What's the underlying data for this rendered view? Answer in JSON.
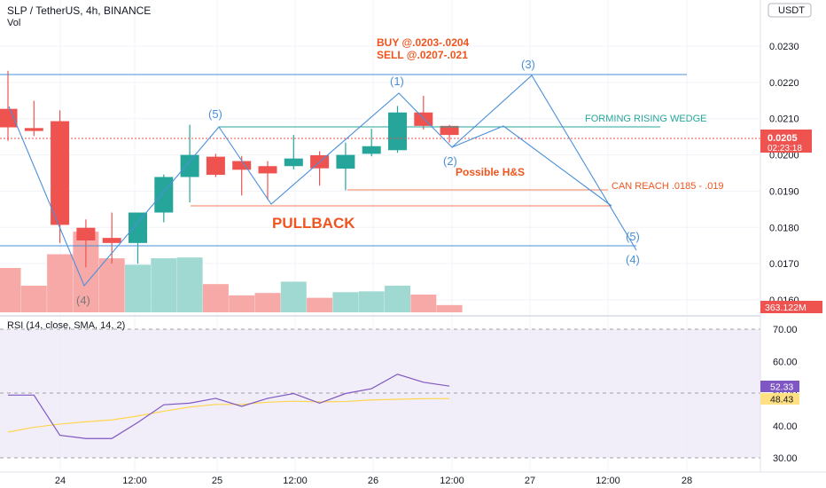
{
  "header": {
    "symbol_line": "SLP / TetherUS, 4h, BINANCE",
    "vol_label": "Vol",
    "currency_badge": "USDT"
  },
  "price_axis": {
    "ticks": [
      "0.0230",
      "0.0220",
      "0.0210",
      "0.0200",
      "0.0190",
      "0.0180",
      "0.0170",
      "0.0160"
    ],
    "last_price": "0.0205",
    "countdown": "02:23:18",
    "volume_badge": "363.122M"
  },
  "rsi_panel": {
    "label": "RSI (14, close, SMA, 14, 2)",
    "ticks": [
      "70.00",
      "60.00",
      "50.00",
      "40.00",
      "30.00"
    ],
    "rsi_value": "52.33",
    "sma_value": "48.43"
  },
  "time_axis": {
    "labels": [
      "24",
      "12:00",
      "25",
      "12:00",
      "26",
      "12:00",
      "27",
      "12:00",
      "28"
    ]
  },
  "annotations": {
    "buy": "BUY @.0203-.0204",
    "sell": "SELL @.0207-.021",
    "wave_1": "(1)",
    "wave_2": "(2)",
    "wave_3": "(3)",
    "wave_4_left": "(4)",
    "wave_4_right": "(4)",
    "wave_5_left": "(5)",
    "wave_5_right": "(5)",
    "rising_wedge": "FORMING RISING WEDGE",
    "possible_hs": "Possible H&S",
    "can_reach": "CAN REACH  .0185 - .019",
    "pullback": "PULLBACK"
  },
  "colors": {
    "up": "#26a69a",
    "down": "#ef5350",
    "drawing_blue": "#4a90d9",
    "annotation_orange": "#f0541e",
    "wedge_teal": "#26a69a",
    "rsi_line": "#7e57c2",
    "rsi_sma": "#ffd54f",
    "rsi_band": "#ede7f6"
  },
  "chart_data": {
    "type": "candlestick",
    "ylabel": "",
    "ylim": [
      0.0155,
      0.0238
    ],
    "candles": [
      {
        "o": 0.02127,
        "h": 0.02232,
        "l": 0.02039,
        "c": 0.02076
      },
      {
        "o": 0.02074,
        "h": 0.02149,
        "l": 0.02052,
        "c": 0.02066
      },
      {
        "o": 0.02093,
        "h": 0.02123,
        "l": 0.01757,
        "c": 0.01807
      },
      {
        "o": 0.01799,
        "h": 0.01822,
        "l": 0.0169,
        "c": 0.01764
      },
      {
        "o": 0.01771,
        "h": 0.01841,
        "l": 0.017,
        "c": 0.01757
      },
      {
        "o": 0.01757,
        "h": 0.01834,
        "l": 0.017,
        "c": 0.01841
      },
      {
        "o": 0.01841,
        "h": 0.01946,
        "l": 0.01814,
        "c": 0.01939
      },
      {
        "o": 0.01939,
        "h": 0.02083,
        "l": 0.01869,
        "c": 0.02
      },
      {
        "o": 0.01995,
        "h": 0.02003,
        "l": 0.01939,
        "c": 0.01945
      },
      {
        "o": 0.01983,
        "h": 0.01997,
        "l": 0.01888,
        "c": 0.01959
      },
      {
        "o": 0.01969,
        "h": 0.01983,
        "l": 0.01876,
        "c": 0.01949
      },
      {
        "o": 0.01969,
        "h": 0.02055,
        "l": 0.0196,
        "c": 0.0199
      },
      {
        "o": 0.01999,
        "h": 0.0201,
        "l": 0.01915,
        "c": 0.01963
      },
      {
        "o": 0.01962,
        "h": 0.02034,
        "l": 0.01902,
        "c": 0.02
      },
      {
        "o": 0.02003,
        "h": 0.02072,
        "l": 0.01996,
        "c": 0.02024
      },
      {
        "o": 0.02013,
        "h": 0.02135,
        "l": 0.02006,
        "c": 0.02117
      },
      {
        "o": 0.02117,
        "h": 0.02163,
        "l": 0.0207,
        "c": 0.0208
      },
      {
        "o": 0.0208,
        "h": 0.02083,
        "l": 0.02034,
        "c": 0.02055
      }
    ],
    "volume_ylim": [
      0,
      110
    ],
    "volumes": [
      55,
      33,
      72,
      100,
      67,
      59,
      67,
      68,
      35,
      21,
      24,
      38,
      18,
      25,
      26,
      33,
      22,
      9
    ],
    "rsi_ylim": [
      27,
      75
    ],
    "rsi": [
      49.5,
      49.5,
      37,
      36,
      36,
      41,
      46.5,
      47,
      48.5,
      46,
      48.5,
      50,
      47,
      50,
      51.5,
      56,
      53.5,
      52.3
    ],
    "rsi_sma": [
      38,
      39.5,
      40.5,
      41.2,
      41.8,
      43,
      44.5,
      45.8,
      46.6,
      46.6,
      47.3,
      47.6,
      47.4,
      47.5,
      48,
      48.2,
      48.4,
      48.43
    ]
  }
}
